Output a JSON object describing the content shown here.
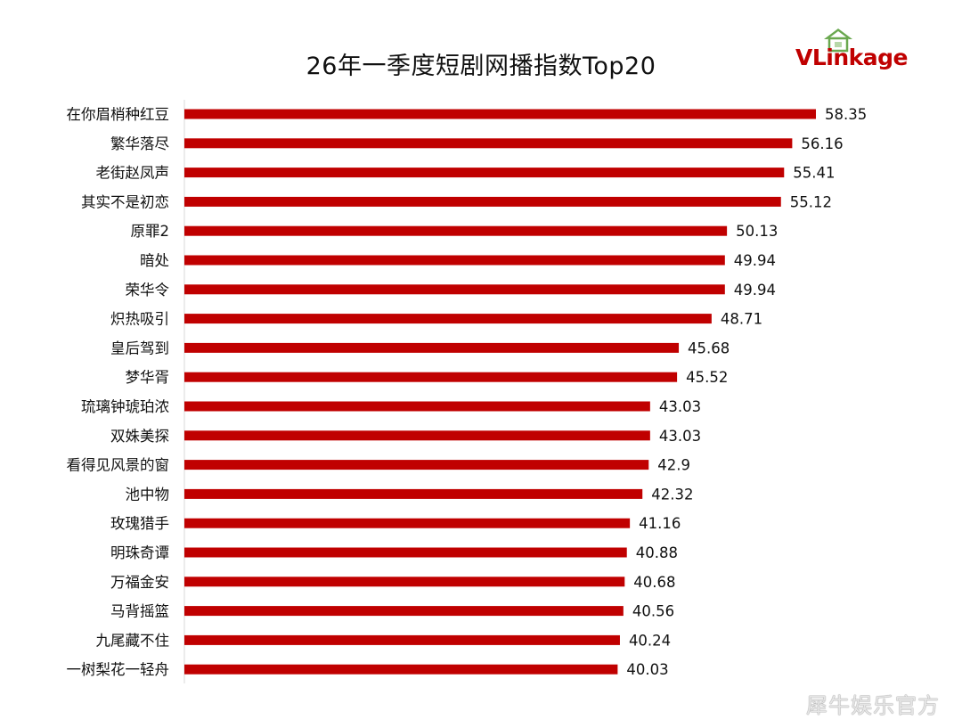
{
  "chart_data": {
    "type": "bar",
    "orientation": "horizontal",
    "title": "26年一季度短剧网播指数Top20",
    "categories": [
      "在你眉梢种红豆",
      "繁华落尽",
      "老街赵凤声",
      "其实不是初恋",
      "原罪2",
      "暗处",
      "荣华令",
      "炽热吸引",
      "皇后驾到",
      "梦华胥",
      "琉璃钟琥珀浓",
      "双姝美探",
      "看得见风景的窗",
      "池中物",
      "玫瑰猎手",
      "明珠奇谭",
      "万福金安",
      "马背摇篮",
      "九尾藏不住",
      "一树梨花一轻舟"
    ],
    "values": [
      58.35,
      56.16,
      55.41,
      55.12,
      50.13,
      49.94,
      49.94,
      48.71,
      45.68,
      45.52,
      43.03,
      43.03,
      42.9,
      42.32,
      41.16,
      40.88,
      40.68,
      40.56,
      40.24,
      40.03
    ],
    "value_labels": [
      "58.35",
      "56.16",
      "55.41",
      "55.12",
      "50.13",
      "49.94",
      "49.94",
      "48.71",
      "45.68",
      "45.52",
      "43.03",
      "43.03",
      "42.9",
      "42.32",
      "41.16",
      "40.88",
      "40.68",
      "40.56",
      "40.24",
      "40.03"
    ],
    "xlim": [
      0,
      58.35
    ],
    "grid": false,
    "bar_color": "#c00000",
    "xlabel": "",
    "ylabel": ""
  },
  "logo": {
    "text": "VLinkage",
    "brand_color": "#c00000",
    "mark_color": "#6aa84f"
  },
  "watermark": {
    "text": "犀牛娱乐官方"
  }
}
